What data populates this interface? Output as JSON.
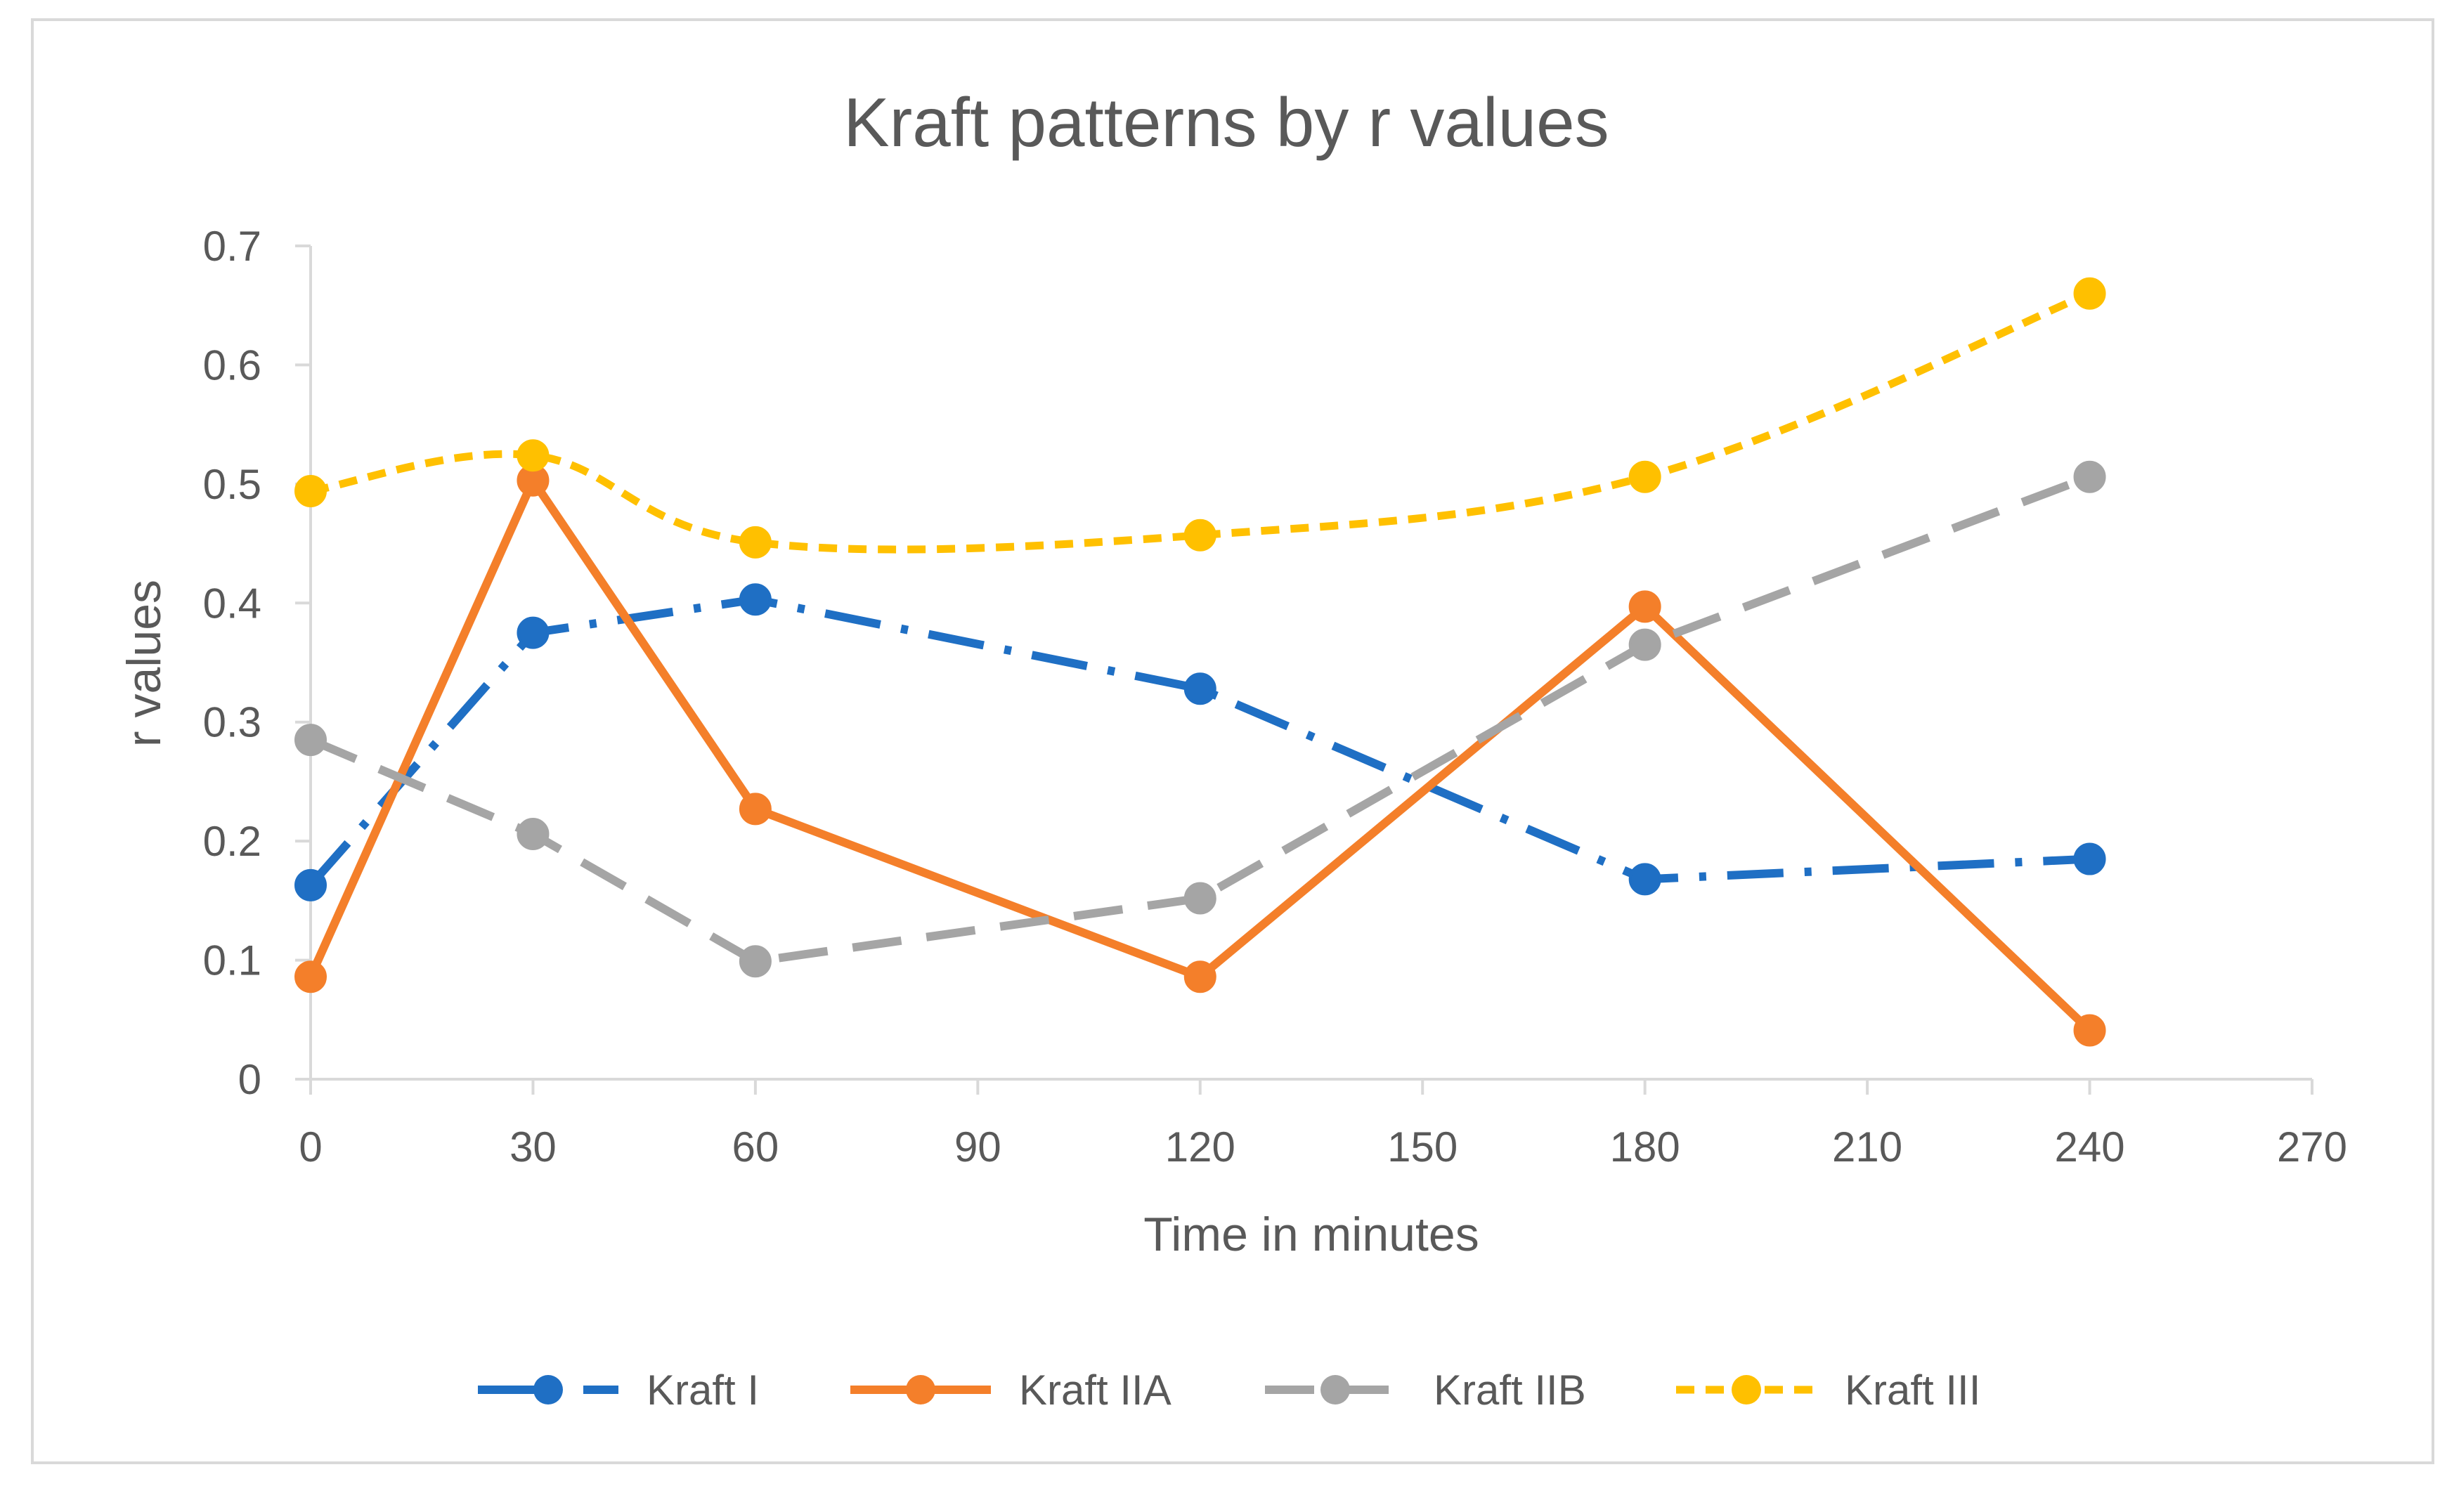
{
  "chart_data": {
    "type": "line",
    "title": "Kraft patterns by r values",
    "xlabel": "Time in minutes",
    "ylabel": "r values",
    "x": [
      0,
      30,
      60,
      120,
      180,
      240
    ],
    "xlim": [
      0,
      270
    ],
    "xticks": [
      0,
      30,
      60,
      90,
      120,
      150,
      180,
      210,
      240,
      270
    ],
    "xtick_labels": [
      "0",
      "30",
      "60",
      "90",
      "120",
      "150",
      "180",
      "210",
      "240",
      "270"
    ],
    "ylim": [
      0,
      0.7
    ],
    "yticks": [
      0,
      0.1,
      0.2,
      0.3,
      0.4,
      0.5,
      0.6,
      0.7
    ],
    "ytick_labels": [
      "0",
      "0.1",
      "0.2",
      "0.3",
      "0.4",
      "0.5",
      "0.6",
      "0.7"
    ],
    "grid": false,
    "legend_position": "bottom",
    "series": [
      {
        "name": "Kraft I",
        "values": [
          0.163,
          0.375,
          0.403,
          0.328,
          0.168,
          0.185
        ],
        "color": "#1F6FC4",
        "line_style": "dash-dot",
        "smooth": false
      },
      {
        "name": "Kraft IIA",
        "values": [
          0.086,
          0.503,
          0.227,
          0.086,
          0.397,
          0.041
        ],
        "color": "#F47F2A",
        "line_style": "solid",
        "smooth": false
      },
      {
        "name": "Kraft IIB",
        "values": [
          0.285,
          0.206,
          0.099,
          0.152,
          0.365,
          0.506
        ],
        "color": "#A5A5A5",
        "line_style": "long-dash",
        "smooth": false
      },
      {
        "name": "Kraft III",
        "values": [
          0.494,
          0.524,
          0.451,
          0.457,
          0.506,
          0.66
        ],
        "color": "#FFC000",
        "line_style": "short-dash",
        "smooth": true
      }
    ]
  }
}
